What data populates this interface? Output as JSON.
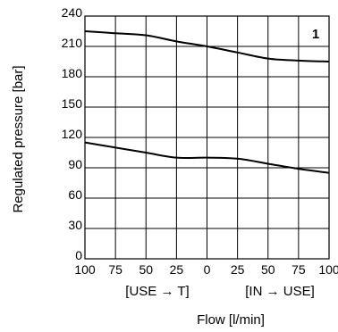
{
  "chart_data": {
    "type": "line",
    "badge": "1",
    "ylabel": "Regulated pressure [bar]",
    "xlabel": "Flow  [l/min]",
    "direction_labels": [
      "[USE → T]",
      "[IN → USE]"
    ],
    "x_position": [
      -100,
      -75,
      -50,
      -25,
      0,
      25,
      50,
      75,
      100
    ],
    "x_tick_labels": [
      "100",
      "75",
      "50",
      "25",
      "0",
      "25",
      "50",
      "75",
      "100"
    ],
    "y_ticks": [
      0,
      30,
      60,
      90,
      120,
      150,
      180,
      210,
      240
    ],
    "ylim": [
      0,
      240
    ],
    "xlim": [
      -100,
      100
    ],
    "grid": true,
    "series": [
      {
        "x": [
          -100,
          -75,
          -50,
          -25,
          0,
          25,
          50,
          75,
          100
        ],
        "y": [
          225,
          223,
          221,
          215,
          210,
          204,
          198,
          196,
          195
        ]
      },
      {
        "x": [
          -100,
          -75,
          -50,
          -25,
          0,
          25,
          50,
          75,
          100
        ],
        "y": [
          115,
          110,
          105,
          100,
          100,
          99,
          94,
          89,
          85
        ]
      }
    ],
    "line_color": "#000000"
  }
}
